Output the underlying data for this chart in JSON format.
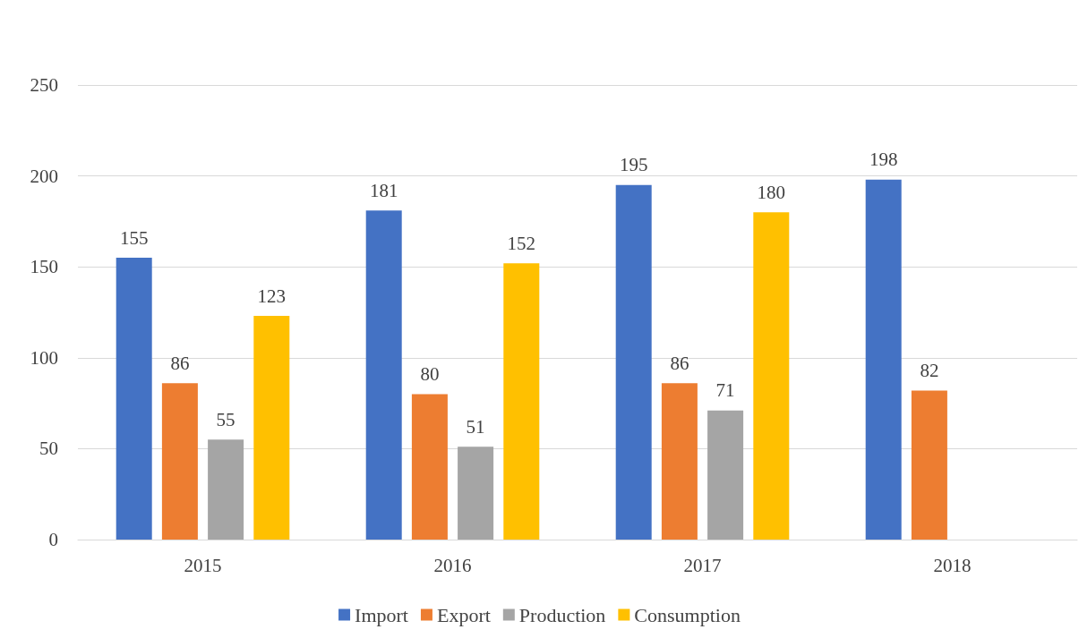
{
  "chart_data": {
    "type": "bar",
    "categories": [
      "2015",
      "2016",
      "2017",
      "2018"
    ],
    "series": [
      {
        "name": "Import",
        "color": "#4472c4",
        "values": [
          155,
          181,
          195,
          198
        ]
      },
      {
        "name": "Export",
        "color": "#ed7d31",
        "values": [
          86,
          80,
          86,
          82
        ]
      },
      {
        "name": "Production",
        "color": "#a5a5a5",
        "values": [
          55,
          51,
          71,
          null
        ]
      },
      {
        "name": "Consumption",
        "color": "#ffc000",
        "values": [
          123,
          152,
          180,
          null
        ]
      }
    ],
    "ylim": [
      0,
      250
    ],
    "yticks": [
      0,
      50,
      100,
      150,
      200,
      250
    ],
    "grid": "y",
    "legend": "bottom",
    "data_labels": true
  }
}
